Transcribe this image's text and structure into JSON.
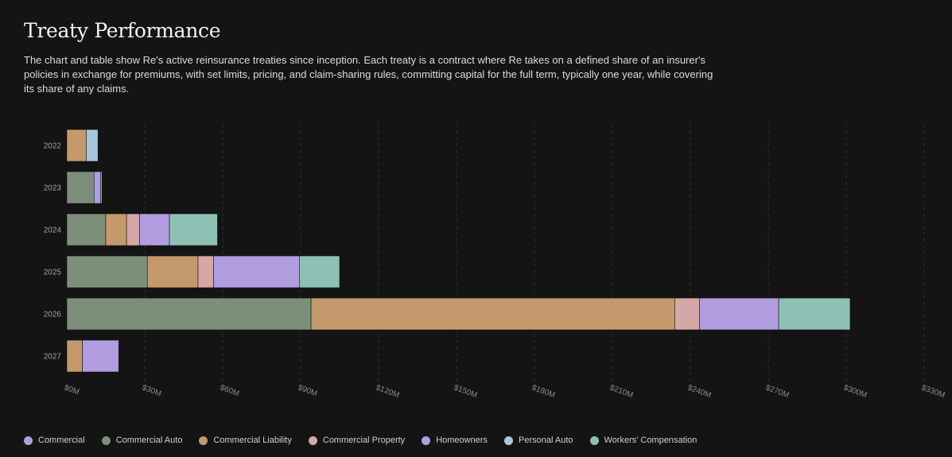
{
  "header": {
    "title": "Treaty Performance",
    "description": "The chart and table show Re's active reinsurance treaties since inception. Each treaty is a contract where Re takes on a defined share of an insurer's policies in exchange for premiums, with set limits, pricing, and claim-sharing rules, committing capital for the full term, typically one year, while covering its share of any claims."
  },
  "chart_data": {
    "type": "bar",
    "orientation": "horizontal",
    "stacked": true,
    "categories": [
      "2022",
      "2023",
      "2024",
      "2025",
      "2026",
      "2027"
    ],
    "x_tick_labels": [
      "$0M",
      "$30M",
      "$60M",
      "$90M",
      "$120M",
      "$150M",
      "$180M",
      "$210M",
      "$240M",
      "$270M",
      "$300M",
      "$330M"
    ],
    "xlim": [
      0,
      330
    ],
    "grid": "vertical dashed",
    "legend_position": "bottom-left",
    "series": [
      {
        "name": "Commercial",
        "color": "#b09ee0",
        "values": [
          0,
          0,
          0,
          0,
          0,
          0
        ]
      },
      {
        "name": "Commercial Auto",
        "color": "#7d8f7a",
        "values": [
          0,
          10.5,
          15,
          31,
          94,
          0
        ]
      },
      {
        "name": "Commercial Liability",
        "color": "#c49a6c",
        "values": [
          7.5,
          0,
          8,
          19.5,
          140,
          6
        ]
      },
      {
        "name": "Commercial Property",
        "color": "#d6a7a7",
        "values": [
          0,
          0,
          5,
          6,
          9.5,
          0
        ]
      },
      {
        "name": "Homeowners",
        "color": "#b09ee0",
        "values": [
          0,
          2.5,
          11.5,
          33,
          30.5,
          14
        ]
      },
      {
        "name": "Personal Auto",
        "color": "#a8c8d8",
        "values": [
          4.5,
          0.5,
          0,
          0,
          0,
          0
        ]
      },
      {
        "name": "Workers' Compensation",
        "color": "#8fc0b4",
        "values": [
          0,
          0,
          18.5,
          15.5,
          27.5,
          0
        ]
      }
    ]
  }
}
